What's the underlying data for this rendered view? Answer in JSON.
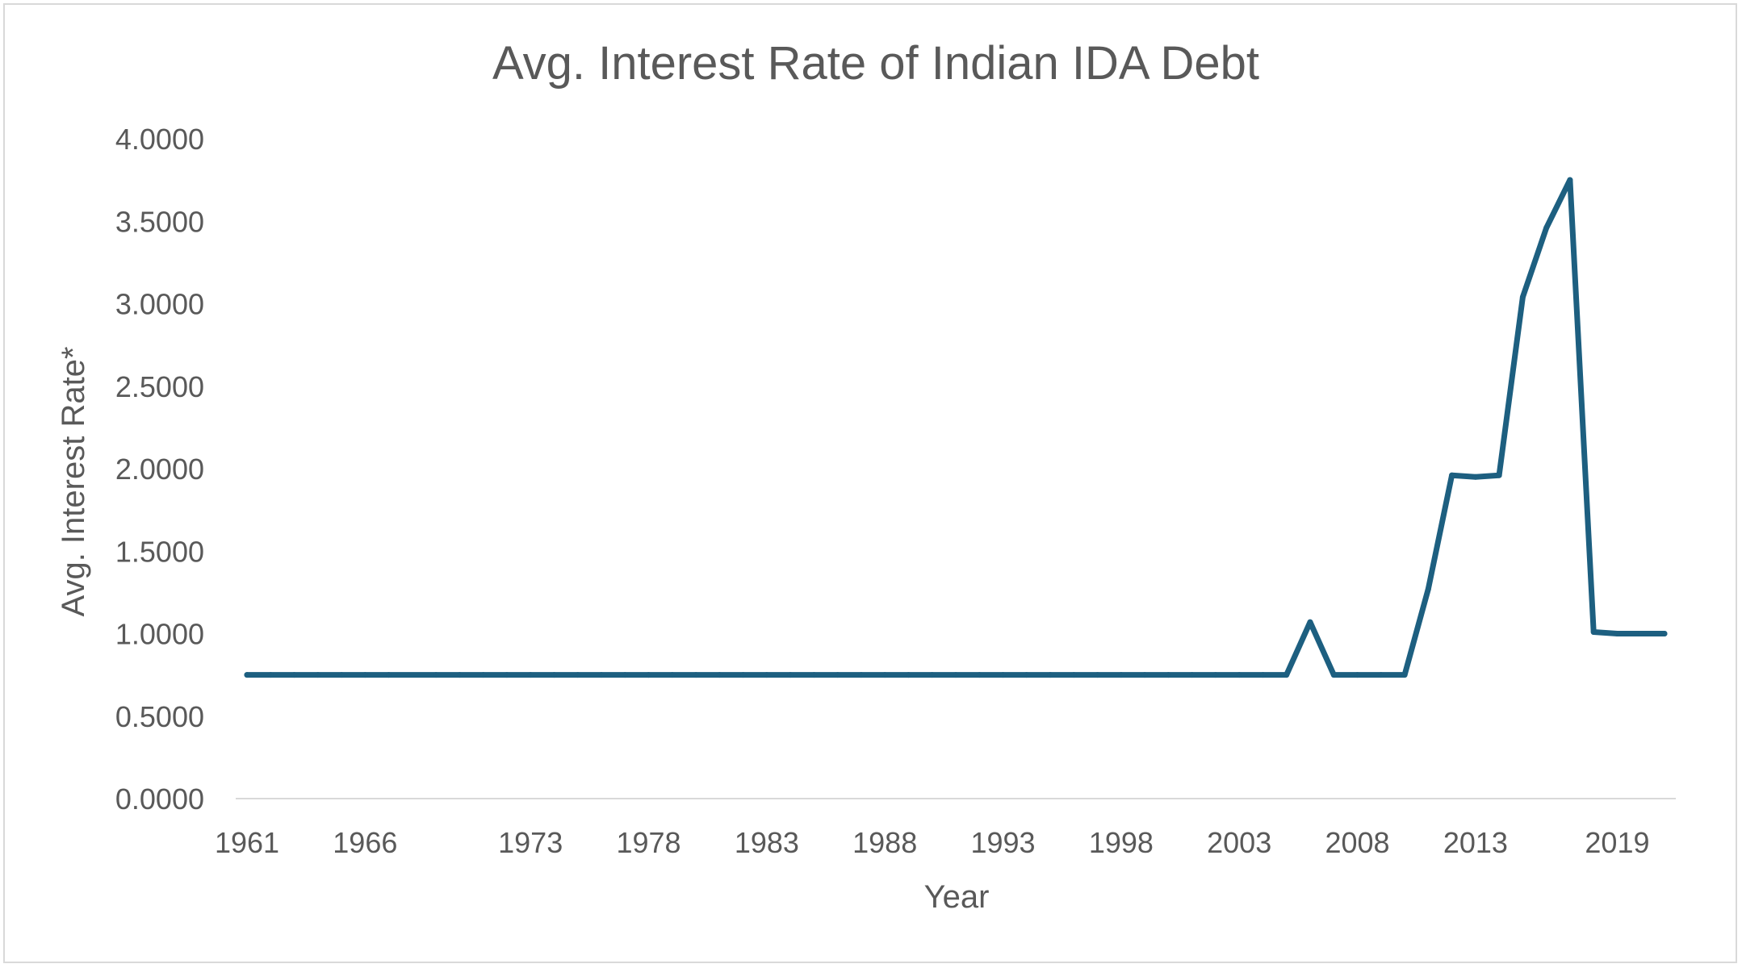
{
  "chart_data": {
    "type": "line",
    "title": "Avg. Interest Rate of Indian IDA Debt",
    "xlabel": "Year",
    "ylabel": "Avg. Interest Rate*",
    "ylim": [
      0,
      4
    ],
    "yticks": [
      "0.0000",
      "0.5000",
      "1.0000",
      "1.5000",
      "2.0000",
      "2.5000",
      "3.0000",
      "3.5000",
      "4.0000"
    ],
    "xticks": [
      "1961",
      "1966",
      "1973",
      "1978",
      "1983",
      "1988",
      "1993",
      "1998",
      "2003",
      "2008",
      "2013",
      "2019"
    ],
    "grid": false,
    "legend": "none",
    "series_color": "#1d5f80",
    "categories": [
      "1961",
      "1962",
      "1963",
      "1964",
      "1965",
      "1966",
      "1967",
      "1969",
      "1970",
      "1971",
      "1972",
      "1973",
      "1974",
      "1975",
      "1976",
      "1977",
      "1978",
      "1979",
      "1980",
      "1981",
      "1982",
      "1983",
      "1984",
      "1985",
      "1986",
      "1987",
      "1988",
      "1989",
      "1990",
      "1991",
      "1992",
      "1993",
      "1994",
      "1995",
      "1996",
      "1997",
      "1998",
      "1999",
      "2000",
      "2001",
      "2002",
      "2003",
      "2004",
      "2005",
      "2006",
      "2007",
      "2008",
      "2009",
      "2010",
      "2011",
      "2012",
      "2013",
      "2014",
      "2015",
      "2016",
      "2017",
      "2018",
      "2019",
      "2020",
      "2021"
    ],
    "values": [
      0.75,
      0.75,
      0.75,
      0.75,
      0.75,
      0.75,
      0.75,
      0.75,
      0.75,
      0.75,
      0.75,
      0.75,
      0.75,
      0.75,
      0.75,
      0.75,
      0.75,
      0.75,
      0.75,
      0.75,
      0.75,
      0.75,
      0.75,
      0.75,
      0.75,
      0.75,
      0.75,
      0.75,
      0.75,
      0.75,
      0.75,
      0.75,
      0.75,
      0.75,
      0.75,
      0.75,
      0.75,
      0.75,
      0.75,
      0.75,
      0.75,
      0.75,
      0.75,
      0.75,
      1.07,
      0.75,
      0.75,
      0.75,
      0.75,
      1.27,
      1.96,
      1.95,
      1.96,
      3.04,
      3.46,
      3.75,
      1.01,
      1.0,
      1.0,
      1.0
    ]
  }
}
